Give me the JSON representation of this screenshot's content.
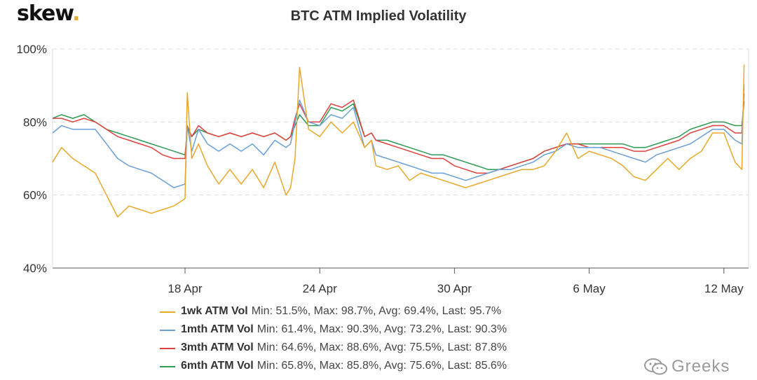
{
  "brand": {
    "name": "skew",
    "dot": "."
  },
  "watermark": {
    "text": "Greeks",
    "icon": "wechat-icon"
  },
  "chart_data": {
    "type": "line",
    "title": "BTC ATM Implied Volatility",
    "xlabel": "",
    "ylabel": "",
    "ylim": [
      40,
      100
    ],
    "yticks": [
      "40%",
      "60%",
      "80%",
      "100%"
    ],
    "xticks": [
      "18 Apr",
      "24 Apr",
      "30 Apr",
      "6 May",
      "12 May"
    ],
    "xtick_days": [
      18,
      24,
      30,
      36,
      42
    ],
    "xlim_days": [
      12.1,
      43.1
    ],
    "x_axis_note": "April/May dates; 6 May and 12 May follow 30 Apr",
    "grid": true,
    "legend_position": "bottom",
    "x": [
      12.1,
      12.5,
      13.0,
      13.5,
      14.0,
      14.5,
      15.0,
      15.5,
      16.0,
      16.5,
      17.0,
      17.5,
      18.0,
      18.1,
      18.3,
      18.6,
      19.0,
      19.5,
      20.0,
      20.5,
      21.0,
      21.5,
      22.0,
      22.5,
      22.7,
      22.9,
      23.1,
      23.5,
      24.0,
      24.5,
      25.0,
      25.5,
      26.0,
      26.3,
      26.5,
      27.0,
      27.5,
      28.0,
      28.5,
      29.0,
      29.5,
      30.0,
      30.5,
      31.0,
      31.5,
      32.0,
      32.5,
      33.0,
      33.5,
      34.0,
      34.5,
      35.0,
      35.5,
      36.0,
      36.5,
      37.0,
      37.5,
      38.0,
      38.5,
      39.0,
      39.5,
      40.0,
      40.5,
      41.0,
      41.5,
      42.0,
      42.5,
      42.8,
      42.9
    ],
    "series": [
      {
        "name": "1wk ATM Vol",
        "color": "#e8a82a",
        "stats": "Min: 51.5%, Max: 98.7%, Avg: 69.4%, Last: 95.7%",
        "values": [
          69,
          73,
          70,
          68,
          66,
          60,
          54,
          57,
          56,
          55,
          56,
          57,
          59,
          88,
          70,
          74,
          68,
          63,
          67,
          63,
          67,
          62,
          69,
          60,
          62,
          70,
          95,
          78,
          76,
          80,
          77,
          80,
          73,
          75,
          68,
          67,
          68,
          64,
          66,
          65,
          64,
          63,
          62,
          63,
          64,
          65,
          66,
          67,
          67,
          68,
          72,
          77,
          70,
          72,
          71,
          70,
          68,
          65,
          64,
          67,
          70,
          67,
          70,
          72,
          77,
          77,
          69,
          67,
          95.7
        ]
      },
      {
        "name": "1mth ATM Vol",
        "color": "#6a9fd8",
        "stats": "Min: 61.4%, Max: 90.3%, Avg: 73.2%, Last: 90.3%",
        "values": [
          77,
          79,
          78,
          78,
          78,
          74,
          70,
          68,
          67,
          66,
          64,
          62,
          63,
          79,
          72,
          78,
          74,
          72,
          74,
          72,
          74,
          71,
          75,
          73,
          74,
          80,
          86,
          80,
          79,
          82,
          81,
          84,
          73,
          75,
          71,
          70,
          69,
          68,
          67,
          66,
          66,
          65,
          64,
          65,
          66,
          67,
          67,
          68,
          69,
          71,
          72,
          74,
          73,
          73,
          73,
          72,
          71,
          70,
          69,
          71,
          72,
          73,
          74,
          76,
          78,
          78,
          75,
          74,
          90.3
        ]
      },
      {
        "name": "3mth ATM Vol",
        "color": "#e0413c",
        "stats": "Min: 64.6%, Max: 88.6%, Avg: 75.5%, Last: 87.8%",
        "values": [
          81,
          81,
          80,
          81,
          80,
          78,
          76,
          75,
          74,
          73,
          71,
          70,
          70,
          79,
          76,
          79,
          77,
          76,
          77,
          76,
          77,
          76,
          77,
          75,
          76,
          81,
          85,
          80,
          80,
          85,
          84,
          86,
          76,
          77,
          75,
          74,
          73,
          72,
          71,
          70,
          70,
          68,
          67,
          66,
          66,
          67,
          68,
          69,
          70,
          72,
          73,
          74,
          74,
          73,
          73,
          73,
          73,
          72,
          72,
          73,
          74,
          75,
          77,
          78,
          79,
          79,
          77,
          77,
          87.8
        ]
      },
      {
        "name": "6mth ATM Vol",
        "color": "#2e9a52",
        "stats": "Min: 65.8%, Max: 85.8%, Avg: 75.6%, Last: 85.6%",
        "values": [
          81,
          82,
          81,
          82,
          80,
          78,
          77,
          76,
          75,
          74,
          73,
          72,
          71,
          78,
          76,
          78,
          77,
          76,
          77,
          76,
          77,
          76,
          77,
          75,
          76,
          79,
          82,
          79,
          79,
          84,
          83,
          85,
          76,
          77,
          75,
          75,
          74,
          73,
          72,
          71,
          71,
          70,
          69,
          68,
          67,
          67,
          68,
          69,
          70,
          72,
          73,
          74,
          74,
          74,
          74,
          74,
          74,
          73,
          73,
          74,
          75,
          76,
          78,
          79,
          80,
          80,
          79,
          79,
          85.6
        ]
      }
    ]
  }
}
